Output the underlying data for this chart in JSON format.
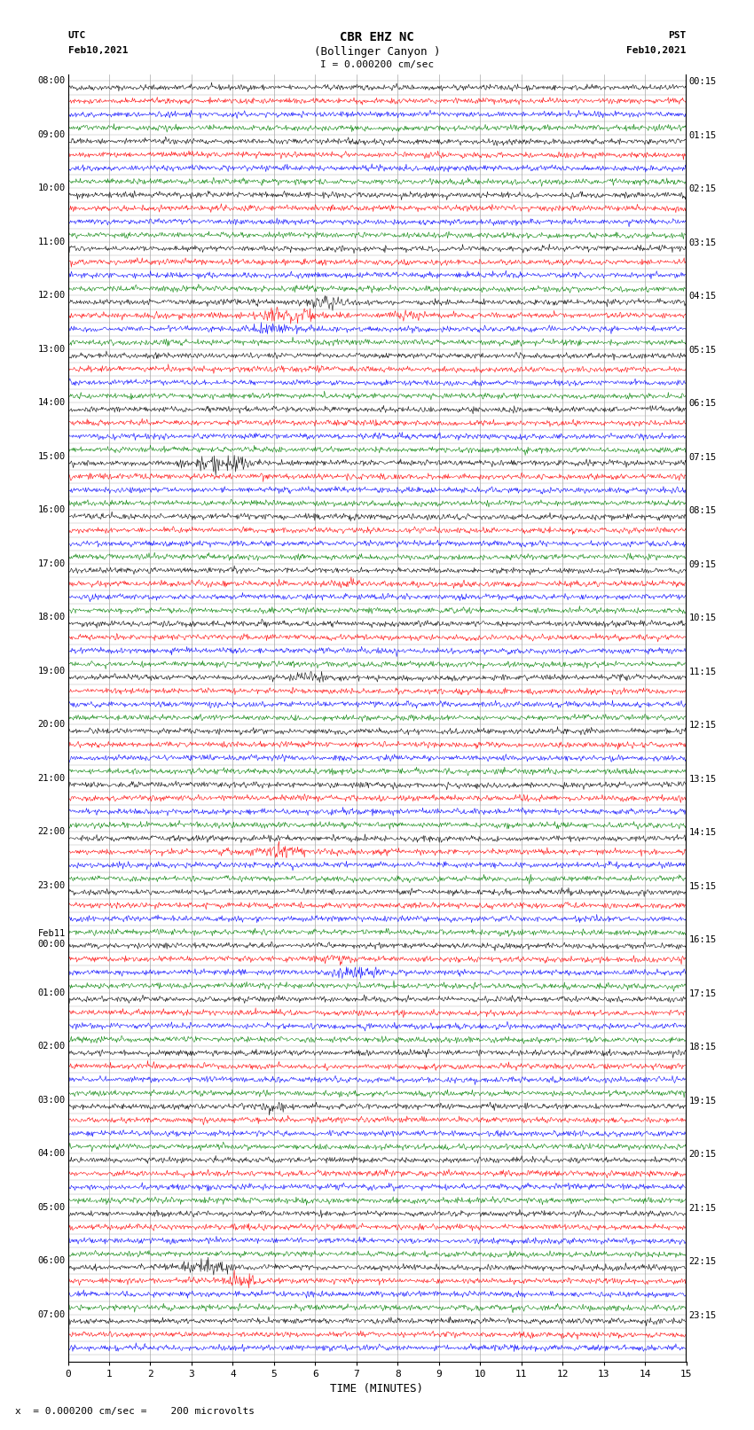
{
  "title_line1": "CBR EHZ NC",
  "title_line2": "(Bollinger Canyon )",
  "scale_label": "I = 0.000200 cm/sec",
  "left_header_line1": "UTC",
  "left_header_line2": "Feb10,2021",
  "right_header_line1": "PST",
  "right_header_line2": "Feb10,2021",
  "bottom_note": "x  = 0.000200 cm/sec =    200 microvolts",
  "xlabel": "TIME (MINUTES)",
  "left_times_utc": [
    "08:00",
    "",
    "",
    "",
    "09:00",
    "",
    "",
    "",
    "10:00",
    "",
    "",
    "",
    "11:00",
    "",
    "",
    "",
    "12:00",
    "",
    "",
    "",
    "13:00",
    "",
    "",
    "",
    "14:00",
    "",
    "",
    "",
    "15:00",
    "",
    "",
    "",
    "16:00",
    "",
    "",
    "",
    "17:00",
    "",
    "",
    "",
    "18:00",
    "",
    "",
    "",
    "19:00",
    "",
    "",
    "",
    "20:00",
    "",
    "",
    "",
    "21:00",
    "",
    "",
    "",
    "22:00",
    "",
    "",
    "",
    "23:00",
    "",
    "",
    "",
    "Feb11",
    "",
    "",
    "",
    "01:00",
    "",
    "",
    "",
    "02:00",
    "",
    "",
    "",
    "03:00",
    "",
    "",
    "",
    "04:00",
    "",
    "",
    "",
    "05:00",
    "",
    "",
    "",
    "06:00",
    "",
    "",
    "",
    "07:00",
    "",
    ""
  ],
  "feb11_row_idx": 64,
  "right_times_pst": [
    "00:15",
    "",
    "",
    "",
    "01:15",
    "",
    "",
    "",
    "02:15",
    "",
    "",
    "",
    "03:15",
    "",
    "",
    "",
    "04:15",
    "",
    "",
    "",
    "05:15",
    "",
    "",
    "",
    "06:15",
    "",
    "",
    "",
    "07:15",
    "",
    "",
    "",
    "08:15",
    "",
    "",
    "",
    "09:15",
    "",
    "",
    "",
    "10:15",
    "",
    "",
    "",
    "11:15",
    "",
    "",
    "",
    "12:15",
    "",
    "",
    "",
    "13:15",
    "",
    "",
    "",
    "14:15",
    "",
    "",
    "",
    "15:15",
    "",
    "",
    "",
    "16:15",
    "",
    "",
    "",
    "17:15",
    "",
    "",
    "",
    "18:15",
    "",
    "",
    "",
    "19:15",
    "",
    "",
    "",
    "20:15",
    "",
    "",
    "",
    "21:15",
    "",
    "",
    "",
    "22:15",
    "",
    "",
    "",
    "23:15",
    "",
    ""
  ],
  "n_rows": 95,
  "colors": [
    "black",
    "red",
    "blue",
    "green"
  ],
  "noise_amplitude": 0.1,
  "time_minutes": 15,
  "n_points": 900,
  "background_color": "white",
  "grid_color": "#aaaaaa",
  "figsize": [
    8.5,
    16.13
  ],
  "dpi": 100
}
